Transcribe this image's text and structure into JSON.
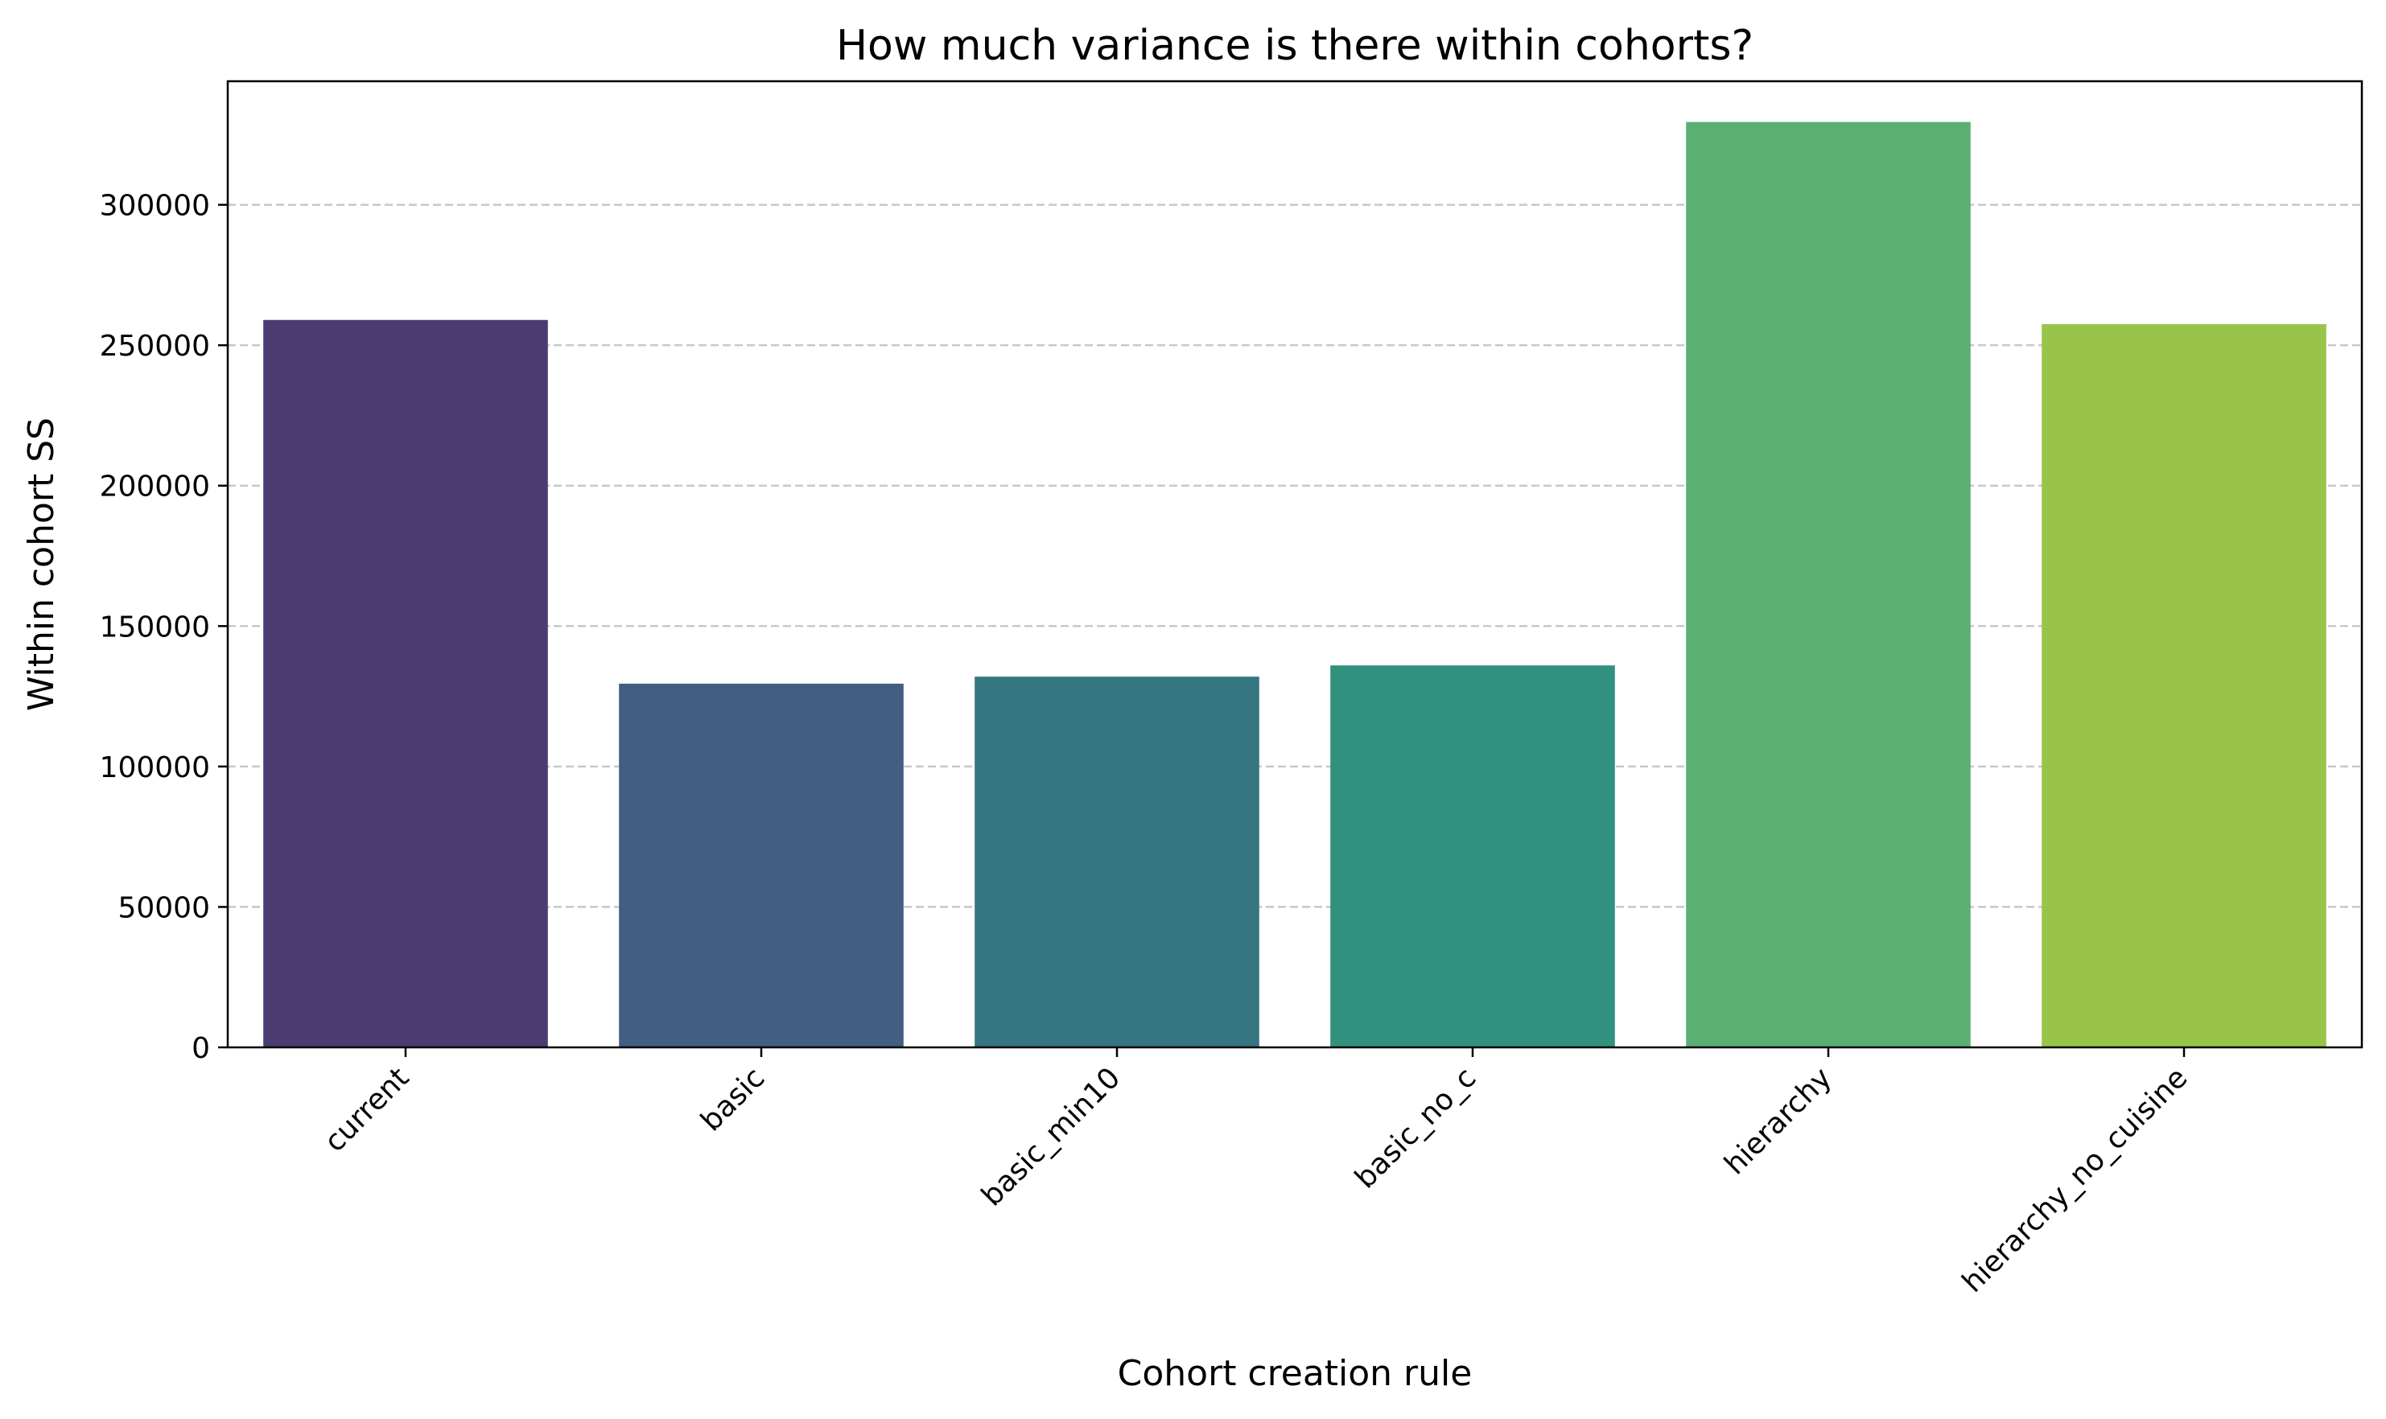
{
  "chart_data": {
    "type": "bar",
    "title": "How much variance is there within cohorts?",
    "xlabel": "Cohort creation rule",
    "ylabel": "Within cohort SS",
    "categories": [
      "current",
      "basic",
      "basic_min10",
      "basic_no_c",
      "hierarchy",
      "hierarchy_no_cuisine"
    ],
    "values": [
      259000,
      129500,
      132000,
      136000,
      329500,
      257500
    ],
    "colors": [
      "#4a3b72",
      "#425f81",
      "#367582",
      "#32917e",
      "#5ab073",
      "#99c44a"
    ],
    "ylim": [
      0,
      344000
    ],
    "yticks": [
      0,
      50000,
      100000,
      150000,
      200000,
      250000,
      300000
    ],
    "ytick_labels": [
      "0",
      "50000",
      "100000",
      "150000",
      "200000",
      "250000",
      "300000"
    ],
    "grid": "y-dashed",
    "legend": "none"
  }
}
